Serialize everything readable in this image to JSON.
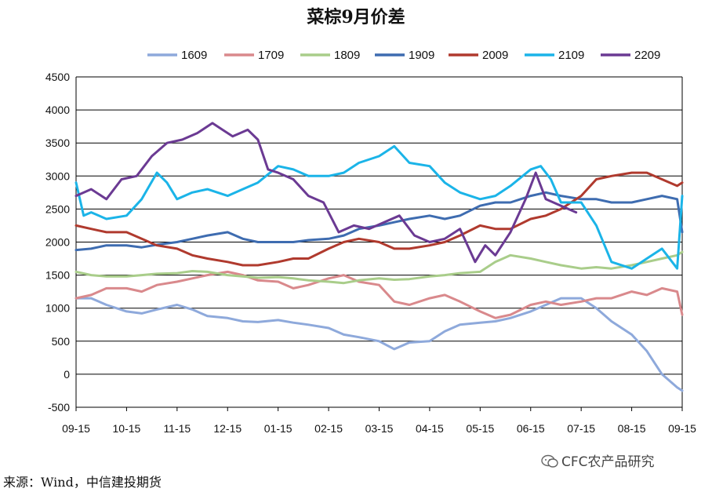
{
  "chart_data": {
    "type": "line",
    "title": "菜棕9月价差",
    "xlabel": "",
    "ylabel": "",
    "ylim": [
      -500,
      4500
    ],
    "yticks": [
      -500,
      0,
      500,
      1000,
      1500,
      2000,
      2500,
      3000,
      3500,
      4000,
      4500
    ],
    "categories": [
      "09-15",
      "10-15",
      "11-15",
      "12-15",
      "01-15",
      "02-15",
      "03-15",
      "04-15",
      "05-15",
      "06-15",
      "07-15",
      "08-15",
      "09-15"
    ],
    "grid": "horizontal",
    "legend_position": "top",
    "series": [
      {
        "name": "1609",
        "color": "#8EA9DB",
        "x": [
          0,
          0.3,
          0.6,
          1,
          1.3,
          1.6,
          2,
          2.3,
          2.6,
          3,
          3.3,
          3.6,
          4,
          4.3,
          4.6,
          5,
          5.3,
          5.6,
          6,
          6.3,
          6.6,
          7,
          7.3,
          7.6,
          8,
          8.3,
          8.6,
          9,
          9.3,
          9.6,
          10,
          10.3,
          10.6,
          11,
          11.3,
          11.6,
          11.9,
          12
        ],
        "values": [
          1150,
          1150,
          1050,
          950,
          920,
          980,
          1050,
          980,
          880,
          850,
          800,
          790,
          820,
          780,
          750,
          700,
          600,
          560,
          500,
          380,
          480,
          500,
          650,
          750,
          780,
          800,
          850,
          950,
          1050,
          1150,
          1150,
          1000,
          800,
          600,
          350,
          0,
          -200,
          -250
        ]
      },
      {
        "name": "1709",
        "color": "#D9898C",
        "x": [
          0,
          0.3,
          0.6,
          1,
          1.3,
          1.6,
          2,
          2.3,
          2.6,
          3,
          3.3,
          3.6,
          4,
          4.3,
          4.6,
          5,
          5.3,
          5.6,
          6,
          6.3,
          6.6,
          7,
          7.3,
          7.6,
          8,
          8.3,
          8.6,
          9,
          9.3,
          9.6,
          10,
          10.3,
          10.6,
          11,
          11.3,
          11.6,
          11.9,
          12
        ],
        "values": [
          1150,
          1200,
          1300,
          1300,
          1250,
          1350,
          1400,
          1450,
          1500,
          1550,
          1500,
          1420,
          1400,
          1300,
          1350,
          1450,
          1500,
          1400,
          1350,
          1100,
          1050,
          1150,
          1200,
          1100,
          950,
          850,
          900,
          1050,
          1100,
          1050,
          1100,
          1150,
          1150,
          1250,
          1200,
          1300,
          1250,
          900
        ]
      },
      {
        "name": "1809",
        "color": "#A9CD8A",
        "x": [
          0,
          0.3,
          0.6,
          1,
          1.3,
          1.6,
          2,
          2.3,
          2.6,
          3,
          3.3,
          3.6,
          4,
          4.3,
          4.6,
          5,
          5.3,
          5.6,
          6,
          6.3,
          6.6,
          7,
          7.3,
          7.6,
          8,
          8.3,
          8.6,
          9,
          9.3,
          9.6,
          10,
          10.3,
          10.6,
          11,
          11.3,
          11.6,
          11.9,
          12
        ],
        "values": [
          1550,
          1500,
          1480,
          1480,
          1500,
          1520,
          1530,
          1560,
          1550,
          1500,
          1480,
          1460,
          1470,
          1450,
          1420,
          1400,
          1380,
          1420,
          1450,
          1430,
          1440,
          1480,
          1500,
          1530,
          1550,
          1700,
          1800,
          1750,
          1700,
          1650,
          1600,
          1620,
          1600,
          1650,
          1700,
          1750,
          1800,
          1850
        ]
      },
      {
        "name": "1909",
        "color": "#3E6CB0",
        "x": [
          0,
          0.3,
          0.6,
          1,
          1.3,
          1.6,
          2,
          2.3,
          2.6,
          3,
          3.3,
          3.6,
          4,
          4.3,
          4.6,
          5,
          5.3,
          5.6,
          6,
          6.3,
          6.6,
          7,
          7.3,
          7.6,
          8,
          8.3,
          8.6,
          9,
          9.3,
          9.6,
          10,
          10.3,
          10.6,
          11,
          11.3,
          11.6,
          11.9,
          12
        ],
        "values": [
          1880,
          1900,
          1950,
          1950,
          1920,
          1960,
          2000,
          2050,
          2100,
          2150,
          2050,
          2000,
          2000,
          2000,
          2030,
          2050,
          2100,
          2200,
          2250,
          2300,
          2350,
          2400,
          2350,
          2400,
          2550,
          2600,
          2600,
          2700,
          2750,
          2700,
          2650,
          2650,
          2600,
          2600,
          2650,
          2700,
          2650,
          2150
        ]
      },
      {
        "name": "2009",
        "color": "#B03A2E",
        "x": [
          0,
          0.3,
          0.6,
          1,
          1.3,
          1.6,
          2,
          2.3,
          2.6,
          3,
          3.3,
          3.6,
          4,
          4.3,
          4.6,
          5,
          5.3,
          5.6,
          6,
          6.3,
          6.6,
          7,
          7.3,
          7.6,
          8,
          8.3,
          8.6,
          9,
          9.3,
          9.6,
          10,
          10.3,
          10.6,
          11,
          11.3,
          11.6,
          11.9,
          12
        ],
        "values": [
          2250,
          2200,
          2150,
          2150,
          2050,
          1950,
          1900,
          1800,
          1750,
          1700,
          1650,
          1650,
          1700,
          1750,
          1750,
          1900,
          2000,
          2050,
          2000,
          1900,
          1900,
          1950,
          2000,
          2100,
          2250,
          2200,
          2200,
          2350,
          2400,
          2500,
          2700,
          2950,
          3000,
          3050,
          3050,
          2950,
          2850,
          2900
        ]
      },
      {
        "name": "2109",
        "color": "#1BB4E8",
        "x": [
          0,
          0.15,
          0.3,
          0.6,
          1,
          1.3,
          1.6,
          1.8,
          2,
          2.3,
          2.6,
          3,
          3.3,
          3.6,
          4,
          4.3,
          4.6,
          5,
          5.3,
          5.6,
          6,
          6.3,
          6.6,
          7,
          7.3,
          7.6,
          8,
          8.3,
          8.6,
          9,
          9.2,
          9.4,
          9.6,
          10,
          10.3,
          10.6,
          11,
          11.3,
          11.6,
          11.9,
          12
        ],
        "values": [
          2900,
          2400,
          2450,
          2350,
          2400,
          2650,
          3050,
          2900,
          2650,
          2750,
          2800,
          2700,
          2800,
          2900,
          3150,
          3100,
          3000,
          3000,
          3050,
          3200,
          3300,
          3450,
          3200,
          3150,
          2900,
          2750,
          2650,
          2700,
          2850,
          3100,
          3150,
          2950,
          2600,
          2600,
          2250,
          1700,
          1600,
          1750,
          1900,
          1600,
          2700
        ]
      },
      {
        "name": "2209",
        "color": "#6B3A93",
        "x": [
          0,
          0.3,
          0.6,
          0.9,
          1.2,
          1.5,
          1.8,
          2.1,
          2.4,
          2.7,
          2.9,
          3.1,
          3.4,
          3.6,
          3.8,
          4,
          4.3,
          4.6,
          4.9,
          5.2,
          5.5,
          5.8,
          6.1,
          6.4,
          6.7,
          7,
          7.3,
          7.6,
          7.9,
          8.1,
          8.3,
          8.6,
          8.9,
          9.1,
          9.3,
          9.6,
          9.9
        ],
        "values": [
          2700,
          2800,
          2650,
          2950,
          3000,
          3300,
          3500,
          3550,
          3650,
          3800,
          3700,
          3600,
          3700,
          3550,
          3100,
          3050,
          2950,
          2700,
          2600,
          2150,
          2250,
          2200,
          2300,
          2400,
          2100,
          2000,
          2050,
          2200,
          1700,
          1950,
          1800,
          2150,
          2650,
          3050,
          2650,
          2550,
          2450
        ]
      }
    ]
  },
  "source": "来源：Wind，中信建投期货",
  "watermark": "CFC农产品研究"
}
